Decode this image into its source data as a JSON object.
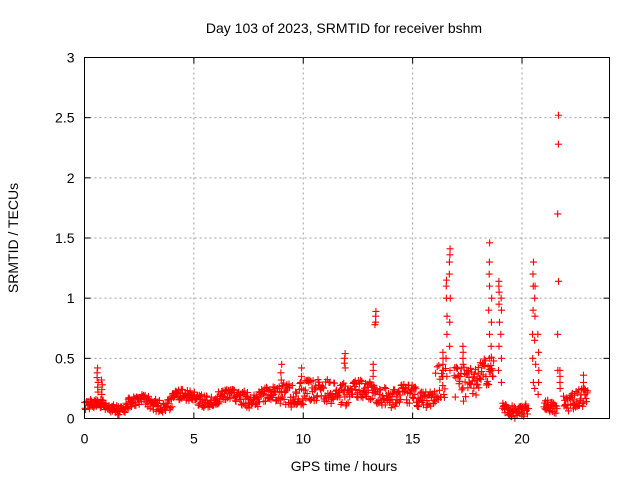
{
  "chart_data": {
    "type": "scatter",
    "title": "Day 103 of 2023, SRMTID for receiver bshm",
    "xlabel": "GPS time / hours",
    "ylabel": "SRMTID / TECUs",
    "xlim": [
      0,
      24
    ],
    "ylim": [
      0,
      3
    ],
    "xticks": [
      0,
      5,
      10,
      15,
      20
    ],
    "yticks": [
      0,
      0.5,
      1,
      1.5,
      2,
      2.5,
      3
    ],
    "xtick_labels": [
      "0",
      "5",
      "10",
      "15",
      "20"
    ],
    "ytick_labels": [
      "0",
      "0.5",
      "1",
      "1.5",
      "2",
      "2.5",
      "3"
    ],
    "grid": true,
    "marker": "+",
    "color": "#ff0000",
    "series": [
      {
        "name": "SRMTID",
        "segments": [
          {
            "x0": 0.0,
            "x1": 2.0,
            "base": 0.1,
            "amp": 0.04
          },
          {
            "x0": 2.0,
            "x1": 4.0,
            "base": 0.13,
            "amp": 0.05
          },
          {
            "x0": 4.0,
            "x1": 7.0,
            "base": 0.17,
            "amp": 0.05
          },
          {
            "x0": 7.0,
            "x1": 9.0,
            "base": 0.18,
            "amp": 0.07
          },
          {
            "x0": 9.0,
            "x1": 12.0,
            "base": 0.22,
            "amp": 0.1
          },
          {
            "x0": 12.0,
            "x1": 14.0,
            "base": 0.22,
            "amp": 0.08
          },
          {
            "x0": 14.0,
            "x1": 16.0,
            "base": 0.18,
            "amp": 0.08
          },
          {
            "x0": 16.0,
            "x1": 16.5,
            "base": 0.3,
            "amp": 0.15
          },
          {
            "x0": 16.9,
            "x1": 18.0,
            "base": 0.3,
            "amp": 0.15
          },
          {
            "x0": 18.0,
            "x1": 18.7,
            "base": 0.38,
            "amp": 0.12
          },
          {
            "x0": 19.1,
            "x1": 20.3,
            "base": 0.08,
            "amp": 0.05
          },
          {
            "x0": 21.0,
            "x1": 21.6,
            "base": 0.1,
            "amp": 0.05
          },
          {
            "x0": 21.9,
            "x1": 23.0,
            "base": 0.15,
            "amp": 0.08
          }
        ],
        "peaks": [
          {
            "x": 0.6,
            "ys": [
              0.42,
              0.38,
              0.34,
              0.3,
              0.26,
              0.22
            ]
          },
          {
            "x": 0.8,
            "ys": [
              0.32,
              0.28,
              0.24,
              0.2
            ]
          },
          {
            "x": 9.0,
            "ys": [
              0.45,
              0.38,
              0.32
            ]
          },
          {
            "x": 9.9,
            "ys": [
              0.42,
              0.35,
              0.3
            ]
          },
          {
            "x": 11.9,
            "ys": [
              0.54,
              0.5,
              0.46,
              0.42
            ]
          },
          {
            "x": 13.3,
            "ys": [
              0.89,
              0.85,
              0.8,
              0.78
            ]
          },
          {
            "x": 13.2,
            "ys": [
              0.45,
              0.4,
              0.35
            ]
          },
          {
            "x": 16.4,
            "ys": [
              0.55,
              0.5,
              0.45,
              0.4,
              0.35
            ]
          },
          {
            "x": 16.55,
            "ys": [
              0.35,
              0.5,
              0.7,
              0.85,
              1.0,
              1.1,
              1.15
            ]
          },
          {
            "x": 16.7,
            "ys": [
              0.4,
              0.6,
              0.8,
              1.0,
              1.2,
              1.3,
              1.36,
              1.41
            ]
          },
          {
            "x": 17.3,
            "ys": [
              0.6,
              0.55,
              0.5,
              0.45
            ]
          },
          {
            "x": 18.5,
            "ys": [
              0.5,
              0.7,
              0.9,
              1.1,
              1.2,
              1.3,
              1.46
            ]
          },
          {
            "x": 18.6,
            "ys": [
              0.4,
              0.6,
              0.8,
              1.0
            ]
          },
          {
            "x": 18.95,
            "ys": [
              0.4,
              0.6,
              0.8,
              0.95,
              1.05,
              1.1,
              1.14
            ]
          },
          {
            "x": 19.05,
            "ys": [
              0.3,
              0.5,
              0.7,
              0.9,
              1.0
            ]
          },
          {
            "x": 20.5,
            "ys": [
              0.3,
              0.5,
              0.7,
              0.9,
              1.1,
              1.2,
              1.3
            ]
          },
          {
            "x": 20.6,
            "ys": [
              0.25,
              0.45,
              0.65,
              0.85,
              1.0,
              1.1
            ]
          },
          {
            "x": 20.75,
            "ys": [
              0.2,
              0.3,
              0.4,
              0.55,
              0.7
            ]
          },
          {
            "x": 21.65,
            "ys": [
              0.4,
              0.7,
              1.14,
              1.7,
              2.28,
              2.52
            ]
          },
          {
            "x": 21.75,
            "ys": [
              0.25,
              0.3,
              0.35,
              0.4
            ]
          },
          {
            "x": 22.8,
            "ys": [
              0.36,
              0.3,
              0.25
            ]
          }
        ]
      }
    ]
  }
}
